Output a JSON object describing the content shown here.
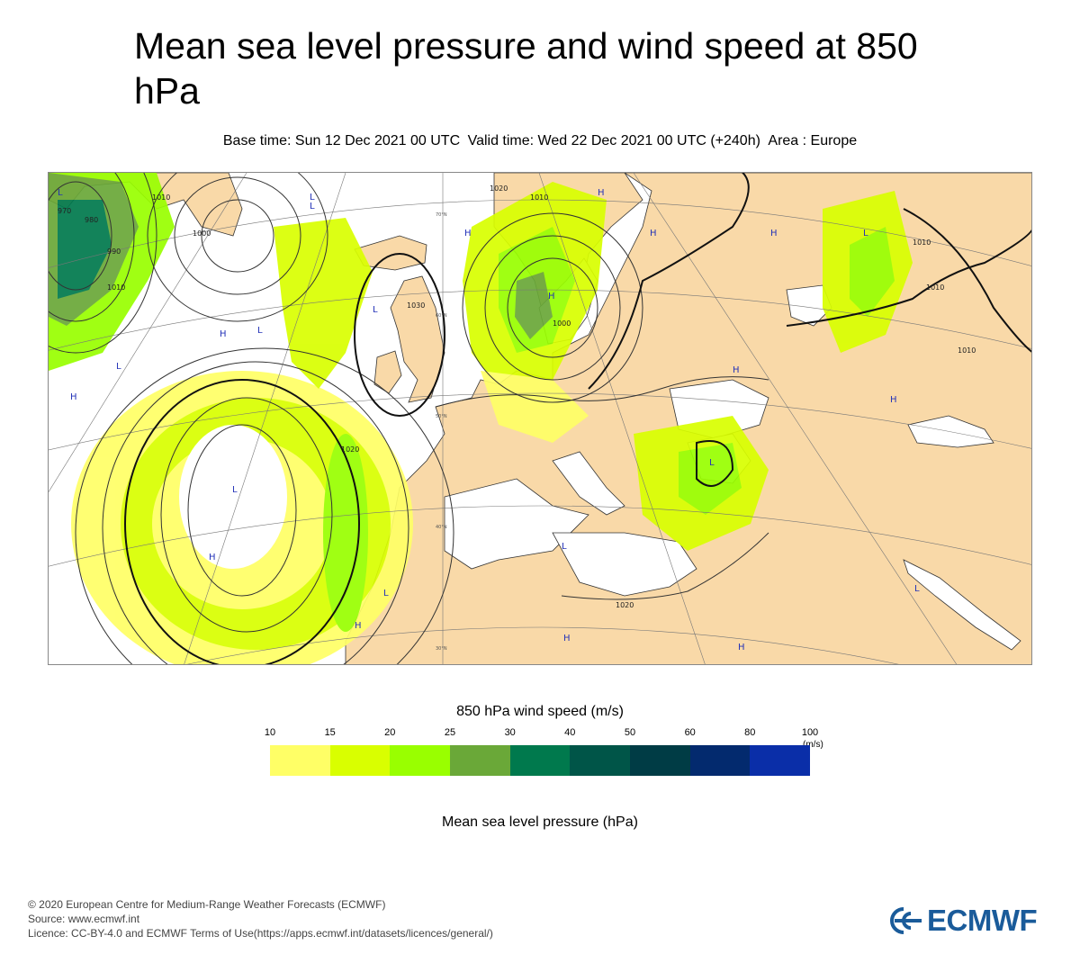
{
  "title": "Mean sea level pressure and wind speed at 850 hPa",
  "subtitle": {
    "base_time": "Base time: Sun 12 Dec 2021 00 UTC",
    "valid_time": "Valid time: Wed 22 Dec 2021 00 UTC (+240h)",
    "area": "Area : Europe"
  },
  "map": {
    "area": "Europe",
    "land_color": "#f9d9a8",
    "sea_color": "#ffffff",
    "pressure_labels": [
      "970",
      "980",
      "990",
      "1000",
      "1010",
      "1010",
      "1010",
      "1010",
      "1010",
      "1010",
      "1020",
      "1020",
      "1020",
      "1000",
      "1030"
    ],
    "centres": [
      "H",
      "H",
      "H",
      "H",
      "H",
      "H",
      "H",
      "H",
      "H",
      "H",
      "H",
      "H",
      "H",
      "L",
      "L",
      "L",
      "L",
      "L",
      "L",
      "L",
      "L",
      "L",
      "L",
      "L",
      "L"
    ],
    "lat_labels": [
      "70°N",
      "60°N",
      "50°N",
      "40°N",
      "30°N"
    ]
  },
  "colorbar": {
    "title": "850 hPa wind speed (m/s)",
    "ticks": [
      "10",
      "15",
      "20",
      "25",
      "30",
      "40",
      "50",
      "60",
      "80",
      "100"
    ],
    "unit": "(m/s)",
    "colors": [
      "#ffff66",
      "#d9ff00",
      "#99ff00",
      "#6aa838",
      "#00794d",
      "#005548",
      "#003c45",
      "#032a6e",
      "#0a2ea8"
    ]
  },
  "pressure_legend": "Mean sea level pressure (hPa)",
  "footer": {
    "copyright": "© 2020 European Centre for Medium-Range Weather Forecasts (ECMWF)",
    "source": "Source: www.ecmwf.int",
    "licence": "Licence: CC-BY-4.0 and ECMWF Terms of Use(https://apps.ecmwf.int/datasets/licences/general/)"
  },
  "logo": {
    "text": "ECMWF",
    "color": "#1a5b9a"
  }
}
